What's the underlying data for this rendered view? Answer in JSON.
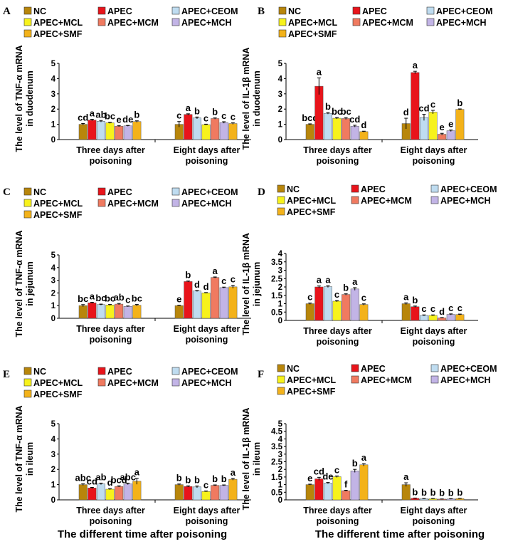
{
  "series_colors": {
    "NC": "#b8860b",
    "APEC": "#e8141b",
    "APEC+CEOM": "#bfdcf0",
    "APEC+MCL": "#f7f21c",
    "APEC+MCM": "#f07a60",
    "APEC+MCH": "#c2b4e6",
    "APEC+SMF": "#f3b21a"
  },
  "x_axis_label": "The different time after poisoning",
  "chart_data": [
    {
      "type": "bar",
      "panel": "A",
      "ylabel_line1": "The level of TNF-α mRNA",
      "ylabel_line2": "in duodenum",
      "ylim": [
        0,
        5
      ],
      "yticks": [
        "0",
        "1",
        "2",
        "3",
        "4",
        "5"
      ],
      "categories": [
        "Three days after poisoning",
        "Eight days after poisoning"
      ],
      "category_lines": [
        [
          "Three days after",
          "poisoning"
        ],
        [
          "Eight days after",
          "poisoning"
        ]
      ],
      "legend_rows": [
        [
          "NC",
          "APEC",
          "APEC+CEOM"
        ],
        [
          "APEC+MCL",
          "APEC+MCM",
          "APEC+MCH"
        ],
        [
          "APEC+SMF"
        ]
      ],
      "series": [
        {
          "name": "NC",
          "values": [
            1.0,
            1.0
          ],
          "errors": [
            0.05,
            0.18
          ],
          "labels": [
            "cd",
            "c"
          ]
        },
        {
          "name": "APEC",
          "values": [
            1.28,
            1.65
          ],
          "errors": [
            0.05,
            0.04
          ],
          "labels": [
            "a",
            "a"
          ]
        },
        {
          "name": "APEC+CEOM",
          "values": [
            1.2,
            1.42
          ],
          "errors": [
            0.05,
            0.06
          ],
          "labels": [
            "ab",
            "b"
          ]
        },
        {
          "name": "APEC+MCL",
          "values": [
            1.1,
            0.98
          ],
          "errors": [
            0.04,
            0.03
          ],
          "labels": [
            "bc",
            "c"
          ]
        },
        {
          "name": "APEC+MCM",
          "values": [
            0.88,
            1.38
          ],
          "errors": [
            0.04,
            0.04
          ],
          "labels": [
            "e",
            "b"
          ]
        },
        {
          "name": "APEC+MCH",
          "values": [
            0.9,
            1.12
          ],
          "errors": [
            0.03,
            0.05
          ],
          "labels": [
            "de",
            "c"
          ]
        },
        {
          "name": "APEC+SMF",
          "values": [
            1.18,
            1.05
          ],
          "errors": [
            0.05,
            0.05
          ],
          "labels": [
            "b",
            "c"
          ]
        }
      ]
    },
    {
      "type": "bar",
      "panel": "B",
      "ylabel_line1": "The level of IL-1β mRNA",
      "ylabel_line2": "in duodenum",
      "ylim": [
        0,
        5
      ],
      "yticks": [
        "0",
        "1",
        "2",
        "3",
        "4",
        "5"
      ],
      "categories": [
        "Three days after poisoning",
        "Eight days after poisoning"
      ],
      "category_lines": [
        [
          "Three days after",
          "poisoning"
        ],
        [
          "Eight days after",
          "poisoning"
        ]
      ],
      "legend_rows": [
        [
          "NC",
          "APEC",
          "APEC+CEOM"
        ],
        [
          "APEC+MCL",
          "APEC+MCM",
          "APEC+MCH"
        ],
        [
          "APEC+SMF"
        ]
      ],
      "series": [
        {
          "name": "NC",
          "values": [
            1.0,
            1.05
          ],
          "errors": [
            0.03,
            0.35
          ],
          "labels": [
            "bcd",
            "d"
          ]
        },
        {
          "name": "APEC",
          "values": [
            3.5,
            4.4
          ],
          "errors": [
            0.55,
            0.08
          ],
          "labels": [
            "a",
            "a"
          ]
        },
        {
          "name": "APEC+CEOM",
          "values": [
            1.72,
            1.45
          ],
          "errors": [
            0.05,
            0.2
          ],
          "labels": [
            "b",
            "cd"
          ]
        },
        {
          "name": "APEC+MCL",
          "values": [
            1.4,
            1.8
          ],
          "errors": [
            0.05,
            0.12
          ],
          "labels": [
            "bc",
            "c"
          ]
        },
        {
          "name": "APEC+MCM",
          "values": [
            1.38,
            0.35
          ],
          "errors": [
            0.06,
            0.06
          ],
          "labels": [
            "bc",
            "e"
          ]
        },
        {
          "name": "APEC+MCH",
          "values": [
            0.88,
            0.58
          ],
          "errors": [
            0.06,
            0.05
          ],
          "labels": [
            "cd",
            "e"
          ]
        },
        {
          "name": "APEC+SMF",
          "values": [
            0.52,
            1.98
          ],
          "errors": [
            0.03,
            0.03
          ],
          "labels": [
            "d",
            "b"
          ]
        }
      ]
    },
    {
      "type": "bar",
      "panel": "C",
      "ylabel_line1": "The level of TNF-α mRNA",
      "ylabel_line2": "in jejunum",
      "ylim": [
        0,
        5
      ],
      "yticks": [
        "0",
        "1",
        "2",
        "3",
        "4",
        "5"
      ],
      "categories": [
        "Three days after poisoning",
        "Eight days after poisoning"
      ],
      "category_lines": [
        [
          "Three days after",
          "poisoning"
        ],
        [
          "Eight days after",
          "poisoning"
        ]
      ],
      "legend_rows": [
        [
          "NC",
          "APEC",
          "APEC+CEOM"
        ],
        [
          "APEC+MCL",
          "APEC+MCM",
          "APEC+MCH"
        ],
        [
          "APEC+SMF"
        ]
      ],
      "series": [
        {
          "name": "NC",
          "values": [
            1.0,
            1.0
          ],
          "errors": [
            0.08,
            0.03
          ],
          "labels": [
            "bc",
            "e"
          ]
        },
        {
          "name": "APEC",
          "values": [
            1.22,
            2.9
          ],
          "errors": [
            0.04,
            0.04
          ],
          "labels": [
            "a",
            "b"
          ]
        },
        {
          "name": "APEC+CEOM",
          "values": [
            1.08,
            2.15
          ],
          "errors": [
            0.04,
            0.04
          ],
          "labels": [
            "bc",
            "d"
          ]
        },
        {
          "name": "APEC+MCL",
          "values": [
            1.05,
            2.0
          ],
          "errors": [
            0.04,
            0.03
          ],
          "labels": [
            "bc",
            "d"
          ]
        },
        {
          "name": "APEC+MCM",
          "values": [
            1.12,
            3.22
          ],
          "errors": [
            0.05,
            0.04
          ],
          "labels": [
            "ab",
            "a"
          ]
        },
        {
          "name": "APEC+MCH",
          "values": [
            0.94,
            2.42
          ],
          "errors": [
            0.03,
            0.04
          ],
          "labels": [
            "c",
            "c"
          ]
        },
        {
          "name": "APEC+SMF",
          "values": [
            1.03,
            2.48
          ],
          "errors": [
            0.06,
            0.12
          ],
          "labels": [
            "bc",
            "c"
          ]
        }
      ]
    },
    {
      "type": "bar",
      "panel": "D",
      "ylabel_line1": "The level of IL-1β mRNA",
      "ylabel_line2": "in jejunum",
      "ylim": [
        0,
        4
      ],
      "yticks": [
        "0",
        "0.5",
        "1",
        "1.5",
        "2",
        "2.5",
        "3",
        "3.5",
        "4"
      ],
      "categories": [
        "Three days after poisoning",
        "Eight days after poisoning"
      ],
      "category_lines": [
        [
          "Three days after",
          "poisoning"
        ],
        [
          "Eight days after",
          "poisoning"
        ]
      ],
      "legend_rows": [
        [
          "NC",
          "APEC",
          "APEC+CEOM"
        ],
        [
          "APEC+MCL",
          "APEC+MCM",
          "APEC+MCH"
        ],
        [
          "APEC+SMF"
        ]
      ],
      "series": [
        {
          "name": "NC",
          "values": [
            1.0,
            1.0
          ],
          "errors": [
            0.04,
            0.05
          ],
          "labels": [
            "c",
            "a"
          ]
        },
        {
          "name": "APEC",
          "values": [
            2.0,
            0.82
          ],
          "errors": [
            0.06,
            0.04
          ],
          "labels": [
            "a",
            "b"
          ]
        },
        {
          "name": "APEC+CEOM",
          "values": [
            2.02,
            0.3
          ],
          "errors": [
            0.05,
            0.03
          ],
          "labels": [
            "a",
            "c"
          ]
        },
        {
          "name": "APEC+MCL",
          "values": [
            1.15,
            0.3
          ],
          "errors": [
            0.04,
            0.03
          ],
          "labels": [
            "c",
            "c"
          ]
        },
        {
          "name": "APEC+MCM",
          "values": [
            1.55,
            0.15
          ],
          "errors": [
            0.04,
            0.02
          ],
          "labels": [
            "b",
            "d"
          ]
        },
        {
          "name": "APEC+MCH",
          "values": [
            1.88,
            0.36
          ],
          "errors": [
            0.08,
            0.03
          ],
          "labels": [
            "a",
            "c"
          ]
        },
        {
          "name": "APEC+SMF",
          "values": [
            0.95,
            0.35
          ],
          "errors": [
            0.04,
            0.03
          ],
          "labels": [
            "c",
            "c"
          ]
        }
      ]
    },
    {
      "type": "bar",
      "panel": "E",
      "ylabel_line1": "The level of TNF-α mRNA",
      "ylabel_line2": "in ileum",
      "ylim": [
        0,
        5
      ],
      "yticks": [
        "0",
        "1",
        "2",
        "3",
        "4",
        "5"
      ],
      "categories": [
        "Three days after poisoning",
        "Eight days after poisoning"
      ],
      "category_lines": [
        [
          "Three days after",
          "poisoning"
        ],
        [
          "Eight days after",
          "poisoning"
        ]
      ],
      "legend_rows": [
        [
          "NC",
          "APEC",
          "APEC+CEOM"
        ],
        [
          "APEC+MCL",
          "APEC+MCM",
          "APEC+MCH"
        ],
        [
          "APEC+SMF"
        ]
      ],
      "series": [
        {
          "name": "NC",
          "values": [
            1.0,
            1.0
          ],
          "errors": [
            0.05,
            0.04
          ],
          "labels": [
            "abc",
            "b"
          ]
        },
        {
          "name": "APEC",
          "values": [
            0.78,
            0.88
          ],
          "errors": [
            0.04,
            0.04
          ],
          "labels": [
            "cd",
            "b"
          ]
        },
        {
          "name": "APEC+CEOM",
          "values": [
            1.05,
            0.85
          ],
          "errors": [
            0.05,
            0.06
          ],
          "labels": [
            "ab",
            "b"
          ]
        },
        {
          "name": "APEC+MCL",
          "values": [
            0.7,
            0.55
          ],
          "errors": [
            0.04,
            0.03
          ],
          "labels": [
            "d",
            "c"
          ]
        },
        {
          "name": "APEC+MCM",
          "values": [
            0.88,
            0.95
          ],
          "errors": [
            0.04,
            0.03
          ],
          "labels": [
            "bcd",
            "b"
          ]
        },
        {
          "name": "APEC+MCH",
          "values": [
            1.05,
            0.95
          ],
          "errors": [
            0.05,
            0.03
          ],
          "labels": [
            "abc",
            "b"
          ]
        },
        {
          "name": "APEC+SMF",
          "values": [
            1.22,
            1.35
          ],
          "errors": [
            0.2,
            0.06
          ],
          "labels": [
            "a",
            "a"
          ]
        }
      ]
    },
    {
      "type": "bar",
      "panel": "F",
      "ylabel_line1": "The level of IL-1β mRNA",
      "ylabel_line2": "in ileum",
      "ylim": [
        0,
        5
      ],
      "yticks": [
        "0",
        "0.5",
        "1",
        "1.5",
        "2",
        "2.5",
        "3",
        "3.5",
        "4",
        "4.5",
        "5"
      ],
      "categories": [
        "Three days after poisoning",
        "Eight days after poisoning"
      ],
      "category_lines": [
        [
          "Three days after",
          "poisoning"
        ],
        [
          "Eight days after",
          "poisoning"
        ]
      ],
      "legend_rows": [
        [
          "NC",
          "APEC",
          "APEC+CEOM"
        ],
        [
          "APEC+MCL",
          "APEC+MCM",
          "APEC+MCH"
        ],
        [
          "APEC+SMF"
        ]
      ],
      "series": [
        {
          "name": "NC",
          "values": [
            1.0,
            1.0
          ],
          "errors": [
            0.03,
            0.12
          ],
          "labels": [
            "e",
            "a"
          ]
        },
        {
          "name": "APEC",
          "values": [
            1.38,
            0.1
          ],
          "errors": [
            0.1,
            0.02
          ],
          "labels": [
            "cd",
            "b"
          ]
        },
        {
          "name": "APEC+CEOM",
          "values": [
            1.1,
            0.07
          ],
          "errors": [
            0.04,
            0.02
          ],
          "labels": [
            "de",
            "b"
          ]
        },
        {
          "name": "APEC+MCL",
          "values": [
            1.52,
            0.07
          ],
          "errors": [
            0.05,
            0.02
          ],
          "labels": [
            "c",
            "b"
          ]
        },
        {
          "name": "APEC+MCM",
          "values": [
            0.6,
            0.05
          ],
          "errors": [
            0.03,
            0.01
          ],
          "labels": [
            "f",
            "b"
          ]
        },
        {
          "name": "APEC+MCH",
          "values": [
            1.9,
            0.06
          ],
          "errors": [
            0.1,
            0.02
          ],
          "labels": [
            "b",
            "b"
          ]
        },
        {
          "name": "APEC+SMF",
          "values": [
            2.3,
            0.08
          ],
          "errors": [
            0.08,
            0.02
          ],
          "labels": [
            "a",
            "b"
          ]
        }
      ]
    }
  ]
}
